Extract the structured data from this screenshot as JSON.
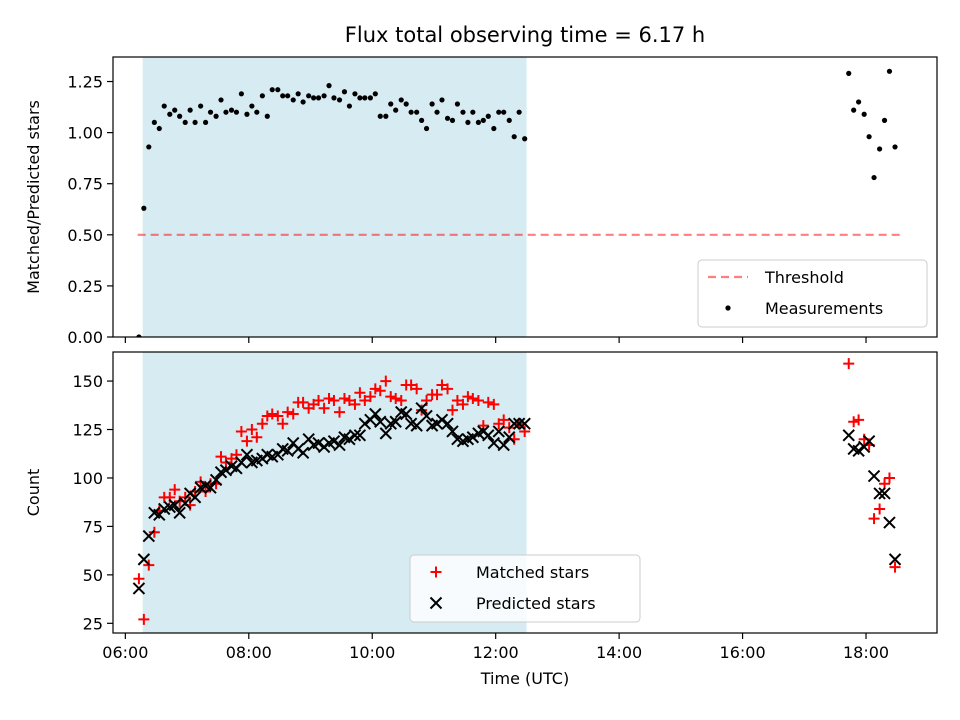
{
  "title": "Flux total observing time = 6.17 h",
  "colors": {
    "shade": "#add8e6",
    "threshold": "#ff0000",
    "measurements": "#000000",
    "matched": "#ff0000",
    "predicted": "#000000"
  },
  "chart_data": [
    {
      "type": "scatter",
      "ylabel": "Matched/Predicted stars",
      "xlabel": "",
      "xlim": [
        5.8,
        19.15
      ],
      "ylim": [
        0.0,
        1.37
      ],
      "yticks": [
        0.0,
        0.25,
        0.5,
        0.75,
        1.0,
        1.25
      ],
      "ytick_labels": [
        "0.00",
        "0.25",
        "0.50",
        "0.75",
        "1.00",
        "1.25"
      ],
      "xticks": [
        6,
        8,
        10,
        12,
        14,
        16,
        18
      ],
      "shaded_span": [
        6.28,
        12.5
      ],
      "threshold": {
        "name": "Threshold",
        "value": 0.5,
        "x_range": [
          6.2,
          18.55
        ],
        "style": "dashed"
      },
      "legend": {
        "position": "lower right",
        "entries": [
          "Threshold",
          "Measurements"
        ]
      },
      "series": [
        {
          "name": "Measurements",
          "marker": "dot",
          "x": [
            6.22,
            6.3,
            6.38,
            6.47,
            6.55,
            6.63,
            6.72,
            6.8,
            6.88,
            6.97,
            7.05,
            7.13,
            7.22,
            7.3,
            7.38,
            7.47,
            7.55,
            7.63,
            7.72,
            7.8,
            7.88,
            7.97,
            8.05,
            8.13,
            8.22,
            8.3,
            8.38,
            8.47,
            8.55,
            8.63,
            8.72,
            8.8,
            8.88,
            8.97,
            9.05,
            9.13,
            9.22,
            9.3,
            9.38,
            9.47,
            9.55,
            9.63,
            9.72,
            9.8,
            9.88,
            9.97,
            10.05,
            10.13,
            10.22,
            10.3,
            10.38,
            10.47,
            10.55,
            10.63,
            10.72,
            10.8,
            10.88,
            10.97,
            11.05,
            11.13,
            11.22,
            11.3,
            11.38,
            11.47,
            11.55,
            11.63,
            11.72,
            11.8,
            11.88,
            11.97,
            12.05,
            12.13,
            12.22,
            12.3,
            12.38,
            12.47,
            17.72,
            17.8,
            17.88,
            17.97,
            18.05,
            18.13,
            18.22,
            18.3,
            18.38,
            18.47
          ],
          "y": [
            0.0,
            0.63,
            0.93,
            1.05,
            1.02,
            1.13,
            1.09,
            1.11,
            1.08,
            1.05,
            1.11,
            1.05,
            1.13,
            1.05,
            1.1,
            1.08,
            1.16,
            1.1,
            1.11,
            1.1,
            1.19,
            1.09,
            1.13,
            1.1,
            1.18,
            1.08,
            1.21,
            1.21,
            1.18,
            1.18,
            1.16,
            1.19,
            1.15,
            1.18,
            1.17,
            1.17,
            1.18,
            1.23,
            1.17,
            1.16,
            1.2,
            1.13,
            1.19,
            1.17,
            1.17,
            1.17,
            1.19,
            1.08,
            1.08,
            1.14,
            1.11,
            1.16,
            1.14,
            1.1,
            1.1,
            1.06,
            1.02,
            1.14,
            1.1,
            1.16,
            1.07,
            1.06,
            1.14,
            1.1,
            1.05,
            1.1,
            1.05,
            1.06,
            1.08,
            1.02,
            1.1,
            1.1,
            1.06,
            0.98,
            1.1,
            0.97,
            1.29,
            1.11,
            1.15,
            1.09,
            0.98,
            0.78,
            0.92,
            1.06,
            1.3,
            0.93
          ]
        }
      ]
    },
    {
      "type": "scatter",
      "ylabel": "Count",
      "xlabel": "Time (UTC)",
      "xlim": [
        5.8,
        19.15
      ],
      "ylim": [
        20,
        165
      ],
      "yticks": [
        25,
        50,
        75,
        100,
        125,
        150
      ],
      "ytick_labels": [
        "25",
        "50",
        "75",
        "100",
        "125",
        "150"
      ],
      "xticks": [
        6,
        8,
        10,
        12,
        14,
        16,
        18
      ],
      "xtick_labels": [
        "06:00",
        "08:00",
        "10:00",
        "12:00",
        "14:00",
        "16:00",
        "18:00"
      ],
      "shaded_span": [
        6.28,
        12.5
      ],
      "legend": {
        "position": "lower center",
        "entries": [
          "Matched stars",
          "Predicted stars"
        ]
      },
      "series": [
        {
          "name": "Matched stars",
          "marker": "plus",
          "x": [
            6.22,
            6.3,
            6.38,
            6.47,
            6.55,
            6.63,
            6.72,
            6.8,
            6.88,
            6.97,
            7.05,
            7.13,
            7.22,
            7.3,
            7.38,
            7.47,
            7.55,
            7.63,
            7.72,
            7.8,
            7.88,
            7.97,
            8.05,
            8.13,
            8.22,
            8.3,
            8.38,
            8.47,
            8.55,
            8.63,
            8.72,
            8.8,
            8.88,
            8.97,
            9.05,
            9.13,
            9.22,
            9.3,
            9.38,
            9.47,
            9.55,
            9.63,
            9.72,
            9.8,
            9.88,
            9.97,
            10.05,
            10.13,
            10.22,
            10.3,
            10.38,
            10.47,
            10.55,
            10.63,
            10.72,
            10.8,
            10.88,
            10.97,
            11.05,
            11.13,
            11.22,
            11.3,
            11.38,
            11.47,
            11.55,
            11.63,
            11.72,
            11.8,
            11.88,
            11.97,
            12.05,
            12.13,
            12.22,
            12.3,
            12.38,
            12.47,
            17.72,
            17.8,
            17.88,
            17.97,
            18.05,
            18.13,
            18.22,
            18.3,
            18.38,
            18.47
          ],
          "y": [
            48,
            27,
            55,
            72,
            83,
            90,
            90,
            94,
            88,
            90,
            86,
            93,
            98,
            93,
            97,
            97,
            111,
            108,
            110,
            112,
            124,
            119,
            125,
            121,
            128,
            132,
            133,
            132,
            128,
            134,
            133,
            139,
            139,
            136,
            138,
            140,
            136,
            141,
            140,
            134,
            141,
            140,
            138,
            144,
            140,
            142,
            146,
            145,
            150,
            142,
            141,
            140,
            148,
            148,
            146,
            135,
            140,
            143,
            143,
            148,
            146,
            135,
            140,
            138,
            142,
            141,
            140,
            127,
            139,
            138,
            128,
            130,
            126,
            120,
            128,
            124,
            159,
            129,
            130,
            120,
            117,
            79,
            84,
            97,
            100,
            54
          ]
        },
        {
          "name": "Predicted stars",
          "marker": "x",
          "x": [
            6.22,
            6.3,
            6.38,
            6.47,
            6.55,
            6.63,
            6.72,
            6.8,
            6.88,
            6.97,
            7.05,
            7.13,
            7.22,
            7.3,
            7.38,
            7.47,
            7.55,
            7.63,
            7.72,
            7.8,
            7.88,
            7.97,
            8.05,
            8.13,
            8.22,
            8.3,
            8.38,
            8.47,
            8.55,
            8.63,
            8.72,
            8.8,
            8.88,
            8.97,
            9.05,
            9.13,
            9.22,
            9.3,
            9.38,
            9.47,
            9.55,
            9.63,
            9.72,
            9.8,
            9.88,
            9.97,
            10.05,
            10.13,
            10.22,
            10.3,
            10.38,
            10.47,
            10.55,
            10.63,
            10.72,
            10.8,
            10.88,
            10.97,
            11.05,
            11.13,
            11.22,
            11.3,
            11.38,
            11.47,
            11.55,
            11.63,
            11.72,
            11.8,
            11.88,
            11.97,
            12.05,
            12.13,
            12.22,
            12.3,
            12.38,
            12.47,
            17.72,
            17.8,
            17.88,
            17.97,
            18.05,
            18.13,
            18.22,
            18.3,
            18.38,
            18.47
          ],
          "y": [
            43,
            58,
            70,
            82,
            81,
            84,
            85,
            86,
            82,
            87,
            92,
            90,
            95,
            96,
            95,
            99,
            103,
            104,
            106,
            105,
            108,
            112,
            108,
            109,
            110,
            112,
            111,
            112,
            115,
            114,
            118,
            115,
            113,
            120,
            117,
            118,
            116,
            118,
            119,
            117,
            121,
            120,
            122,
            122,
            128,
            130,
            133,
            129,
            123,
            128,
            129,
            134,
            133,
            128,
            127,
            136,
            132,
            127,
            128,
            130,
            128,
            124,
            120,
            119,
            120,
            121,
            123,
            124,
            122,
            118,
            124,
            117,
            121,
            128,
            128,
            128,
            122,
            115,
            114,
            116,
            119,
            101,
            92,
            92,
            77,
            58
          ]
        }
      ]
    }
  ]
}
